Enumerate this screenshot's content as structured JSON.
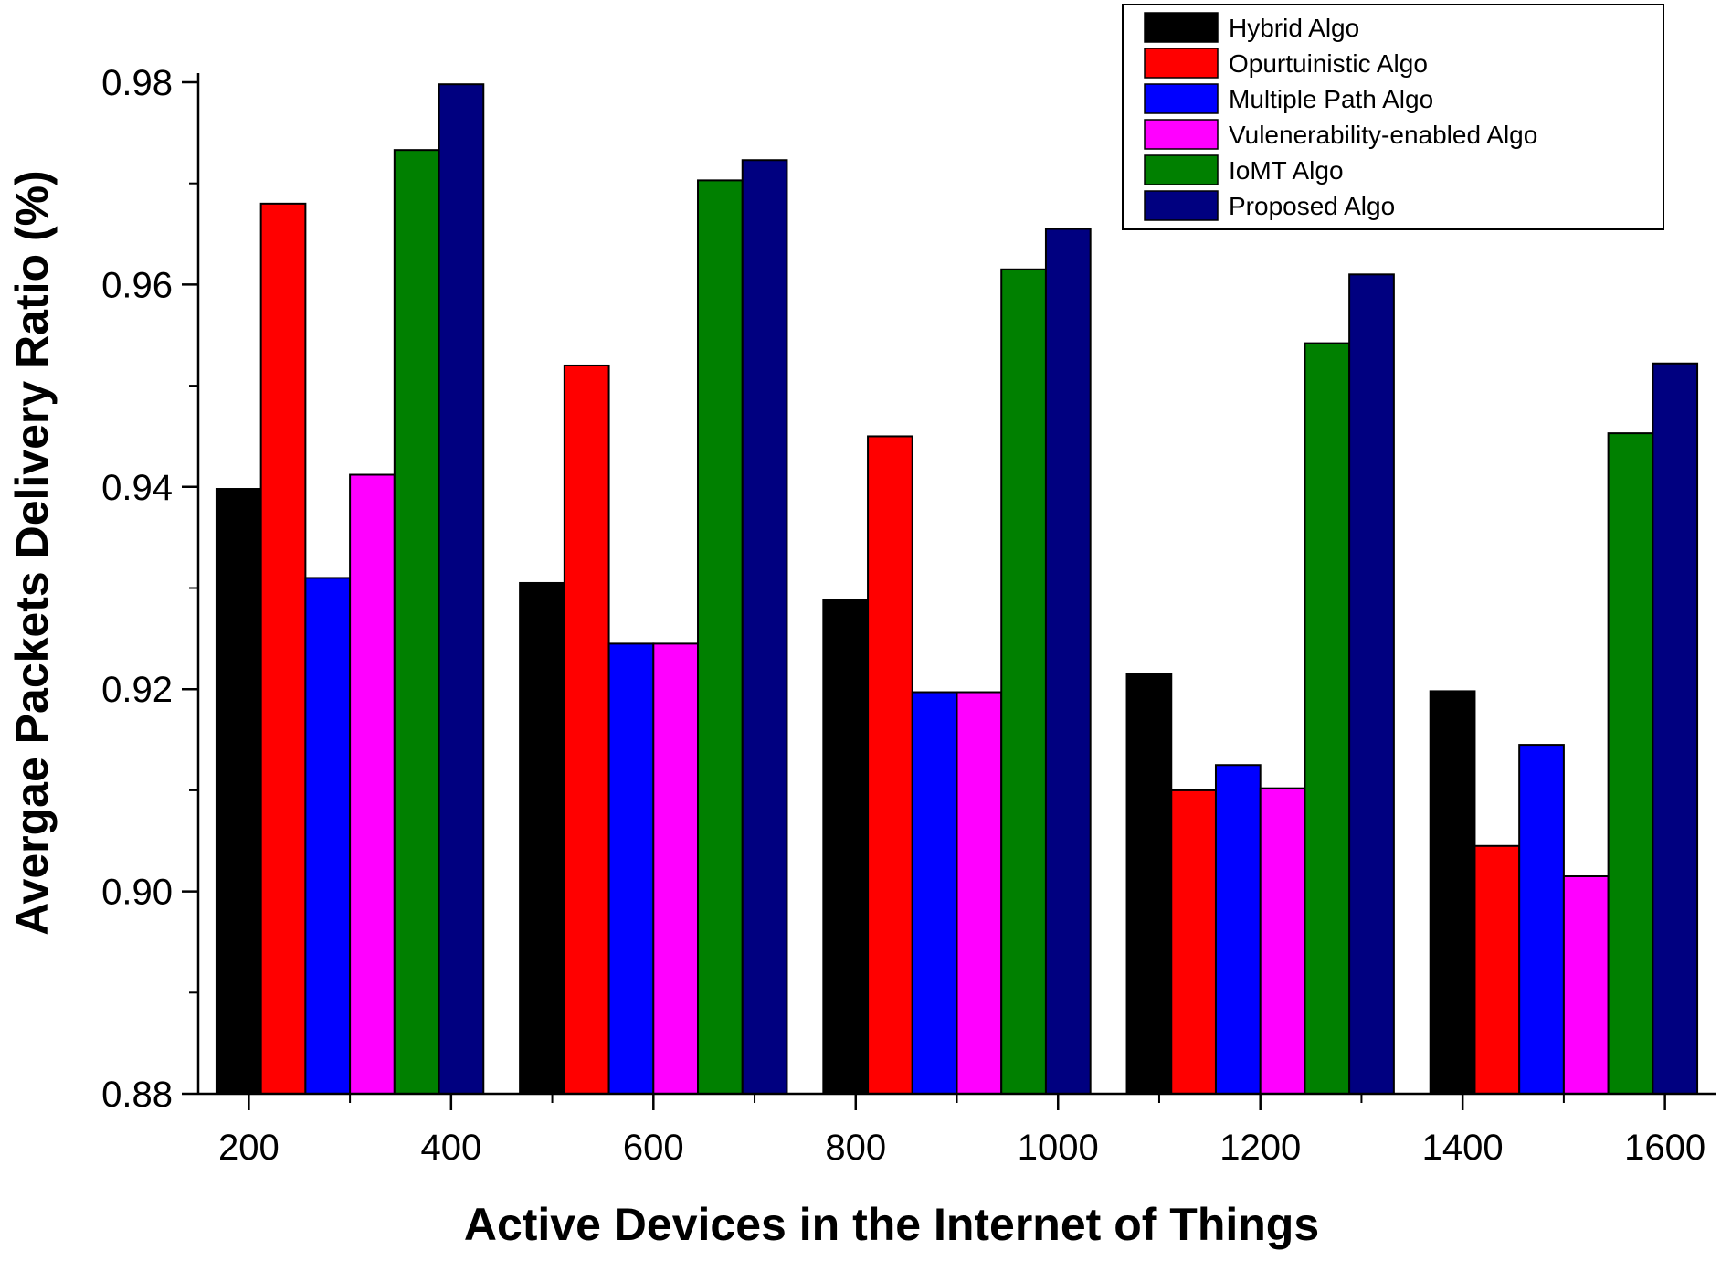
{
  "chart_data": {
    "type": "bar",
    "title": "",
    "xlabel": "Active Devices in the Internet of Things",
    "ylabel": "Avergae Packets Delivery Ratio (%)",
    "ylim": [
      0.88,
      0.98
    ],
    "yticks": [
      "0.88",
      "0.90",
      "0.92",
      "0.94",
      "0.96",
      "0.98"
    ],
    "xrange": [
      150,
      1650
    ],
    "xticks": [
      "200",
      "400",
      "600",
      "800",
      "1000",
      "1200",
      "1400",
      "1600"
    ],
    "groups": [
      300,
      600,
      900,
      1200,
      1500
    ],
    "series": [
      {
        "name": "Hybrid Algo",
        "color": "#000000",
        "values": [
          0.9398,
          0.9305,
          0.9288,
          0.9215,
          0.9198
        ]
      },
      {
        "name": "Opurtuinistic Algo",
        "color": "#ff0000",
        "values": [
          0.968,
          0.952,
          0.945,
          0.91,
          0.9045
        ]
      },
      {
        "name": "Multiple Path Algo",
        "color": "#0000ff",
        "values": [
          0.931,
          0.9245,
          0.9197,
          0.9125,
          0.9145
        ]
      },
      {
        "name": "Vulenerability-enabled Algo",
        "color": "#ff00ff",
        "values": [
          0.9412,
          0.9245,
          0.9197,
          0.9102,
          0.9015
        ]
      },
      {
        "name": "IoMT Algo",
        "color": "#008000",
        "values": [
          0.9733,
          0.9703,
          0.9615,
          0.9542,
          0.9453
        ]
      },
      {
        "name": "Proposed Algo",
        "color": "#000080",
        "values": [
          0.9798,
          0.9723,
          0.9655,
          0.961,
          0.9522
        ]
      }
    ],
    "legend_position": "top-right",
    "grid": false
  }
}
